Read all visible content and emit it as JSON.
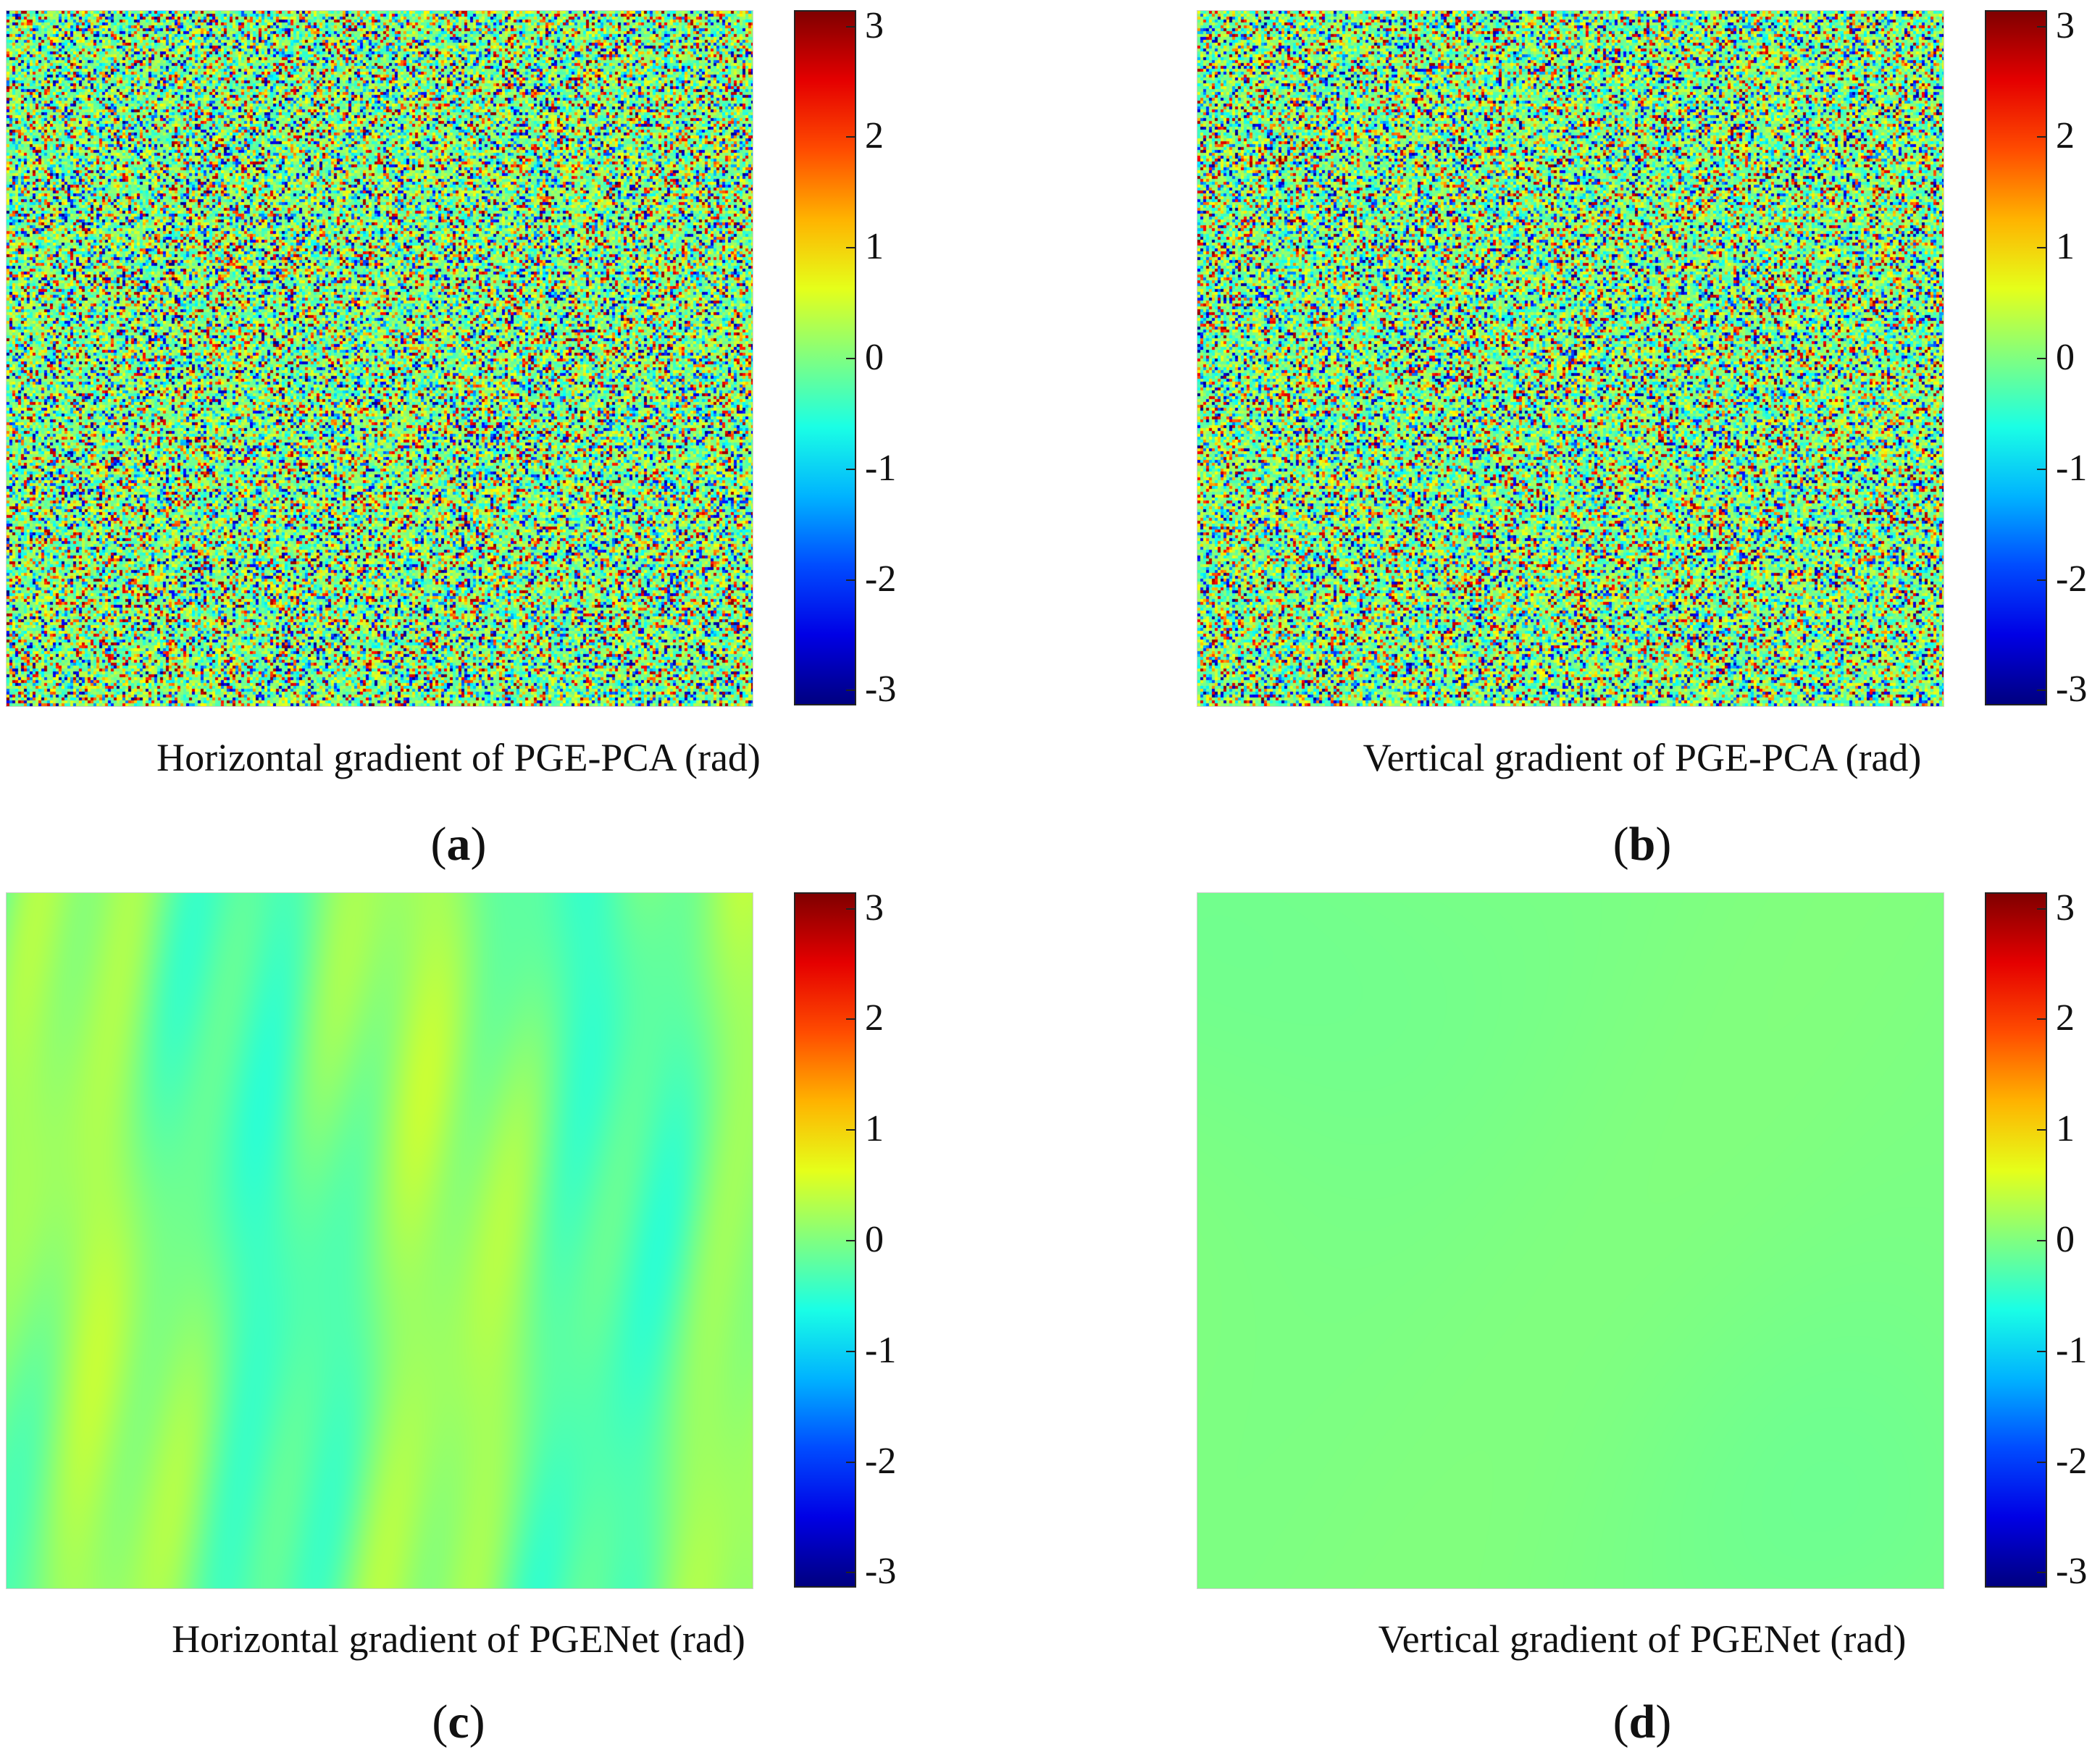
{
  "chart_data": [
    {
      "type": "heatmap",
      "panel_label": {
        "open": "(",
        "letter": "a",
        "close": ")"
      },
      "xlabel": "Horizontal gradient of PGE-PCA (rad)",
      "pattern": "random-noise",
      "value_range": [
        -3.1416,
        3.1416
      ],
      "colormap": "jet",
      "colorbar_ticks": [
        "3",
        "2",
        "1",
        "0",
        "-1",
        "-2",
        "-3"
      ]
    },
    {
      "type": "heatmap",
      "panel_label": {
        "open": "(",
        "letter": "b",
        "close": ")"
      },
      "xlabel": "Vertical gradient of PGE-PCA (rad)",
      "pattern": "random-noise",
      "value_range": [
        -3.1416,
        3.1416
      ],
      "colormap": "jet",
      "colorbar_ticks": [
        "3",
        "2",
        "1",
        "0",
        "-1",
        "-2",
        "-3"
      ]
    },
    {
      "type": "heatmap",
      "panel_label": {
        "open": "(",
        "letter": "c",
        "close": ")"
      },
      "xlabel": "Horizontal gradient of PGENet (rad)",
      "pattern": "smooth-vertical-stripes",
      "data_value_range_shown": [
        -0.6,
        0.5
      ],
      "value_range": [
        -3.1416,
        3.1416
      ],
      "colormap": "jet",
      "colorbar_ticks": [
        "3",
        "2",
        "1",
        "0",
        "-1",
        "-2",
        "-3"
      ]
    },
    {
      "type": "heatmap",
      "panel_label": {
        "open": "(",
        "letter": "d",
        "close": ")"
      },
      "xlabel": "Vertical gradient of PGENet (rad)",
      "pattern": "near-uniform",
      "data_value_range_shown": [
        -0.25,
        0.15
      ],
      "value_range": [
        -3.1416,
        3.1416
      ],
      "colormap": "jet",
      "colorbar_ticks": [
        "3",
        "2",
        "1",
        "0",
        "-1",
        "-2",
        "-3"
      ]
    }
  ]
}
